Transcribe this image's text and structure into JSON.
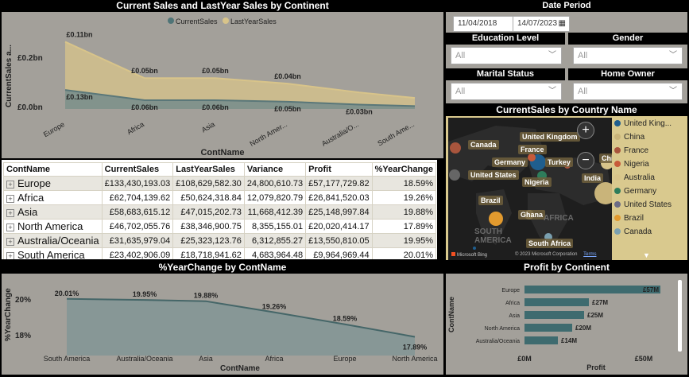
{
  "area_chart": {
    "title": "Current Sales and LastYear Sales by Continent",
    "legend": [
      "CurrentSales",
      "LastYearSales"
    ],
    "ylabel": "CurrentSales a...",
    "xlabel": "ContName",
    "yticks": [
      "£0.2bn",
      "£0.0bn"
    ],
    "chart_data": {
      "type": "area",
      "categories": [
        "Europe",
        "Africa",
        "Asia",
        "North Amer...",
        "Australia/O...",
        "South Ame..."
      ],
      "series": [
        {
          "name": "CurrentSales",
          "values": [
            0.13,
            0.06,
            0.06,
            0.05,
            0.03,
            0.02
          ],
          "labels": [
            "£0.13bn",
            "£0.06bn",
            "£0.06bn",
            "£0.05bn",
            "£0.03bn",
            ""
          ]
        },
        {
          "name": "LastYearSales",
          "values": [
            0.11,
            0.05,
            0.05,
            0.04,
            0.03,
            0.02
          ],
          "labels": [
            "£0.11bn",
            "£0.05bn",
            "£0.05bn",
            "£0.04bn",
            "",
            ""
          ]
        }
      ],
      "ylim": [
        0,
        0.25
      ]
    },
    "colors": {
      "current": "#6f8a8c",
      "lastyear": "#d8c48a"
    }
  },
  "table": {
    "headers": [
      "ContName",
      "CurrentSales",
      "LastYearSales",
      "Variance",
      "Profit",
      "%YearChange"
    ],
    "rows": [
      [
        "Europe",
        "£133,430,193.03",
        "£108,629,582.30",
        "24,800,610.73",
        "£57,177,729.82",
        "18.59%"
      ],
      [
        "Africa",
        "£62,704,139.62",
        "£50,624,318.84",
        "12,079,820.79",
        "£26,841,520.03",
        "19.26%"
      ],
      [
        "Asia",
        "£58,683,615.12",
        "£47,015,202.73",
        "11,668,412.39",
        "£25,148,997.84",
        "19.88%"
      ],
      [
        "North America",
        "£46,702,055.76",
        "£38,346,900.75",
        "8,355,155.01",
        "£20,020,414.17",
        "17.89%"
      ],
      [
        "Australia/Oceania",
        "£31,635,979.04",
        "£25,323,123.76",
        "6,312,855.27",
        "£13,550,810.05",
        "19.95%"
      ],
      [
        "South America",
        "£23,402,906.09",
        "£18,718,941.62",
        "4,683,964.48",
        "£9,964,969.44",
        "20.01%"
      ]
    ],
    "expand_icon": "plus-box"
  },
  "yearchange_chart": {
    "title": "%YearChange by ContName",
    "ylabel": "%YearChange",
    "xlabel": "ContName",
    "yticks": [
      "20%",
      "18%"
    ],
    "chart_data": {
      "type": "area",
      "categories": [
        "South America",
        "Australia/Oceania",
        "Asia",
        "Africa",
        "Europe",
        "North America"
      ],
      "values": [
        20.01,
        19.95,
        19.88,
        19.26,
        18.59,
        17.89
      ],
      "labels": [
        "20.01%",
        "19.95%",
        "19.88%",
        "19.26%",
        "18.59%",
        "17.89%"
      ],
      "ylim": [
        17.5,
        20.5
      ]
    }
  },
  "slicers": {
    "date_period": {
      "title": "Date Period",
      "start": "11/04/2018",
      "end": "14/07/2023"
    },
    "education": {
      "title": "Education Level",
      "value": "All"
    },
    "gender": {
      "title": "Gender",
      "value": "All"
    },
    "marital": {
      "title": "Marital Status",
      "value": "All"
    },
    "home_owner": {
      "title": "Home Owner",
      "value": "All"
    }
  },
  "map": {
    "title": "CurrentSales by Country Name",
    "countries": [
      "Canada",
      "United Kingdom",
      "France",
      "Germany",
      "Turkey",
      "United States",
      "Nigeria",
      "India",
      "China",
      "Brazil",
      "Ghana",
      "South Africa"
    ],
    "regions": [
      "AFRICA",
      "SOUTH AMERICA"
    ],
    "attribution": "© 2023 Microsoft Corporation",
    "terms": "Terms",
    "bing": "Microsoft Bing",
    "zoom_in": "+",
    "zoom_out": "−",
    "legend": [
      {
        "name": "United King...",
        "color": "#1f5e8e"
      },
      {
        "name": "China",
        "color": "#c9b47a"
      },
      {
        "name": "France",
        "color": "#a8553d"
      },
      {
        "name": "Nigeria",
        "color": "#c75a3a"
      },
      {
        "name": "Australia",
        "color": "#d8c48a"
      },
      {
        "name": "Germany",
        "color": "#2e7d5b"
      },
      {
        "name": "United States",
        "color": "#6c6c86"
      },
      {
        "name": "Brazil",
        "color": "#e29a2e"
      },
      {
        "name": "Canada",
        "color": "#7aa0b0"
      }
    ]
  },
  "profit_chart": {
    "title": "Profit by Continent",
    "ylabel": "ContName",
    "xlabel": "Profit",
    "xticks": [
      "£0M",
      "£50M"
    ],
    "chart_data": {
      "type": "bar",
      "categories": [
        "Europe",
        "Africa",
        "Asia",
        "North America",
        "Australia/Oceania"
      ],
      "values": [
        57,
        27,
        25,
        20,
        14
      ],
      "labels": [
        "£57M",
        "£27M",
        "£25M",
        "£20M",
        "£14M"
      ],
      "xlim": [
        0,
        60
      ]
    },
    "bar_color": "#3e6b6f"
  }
}
